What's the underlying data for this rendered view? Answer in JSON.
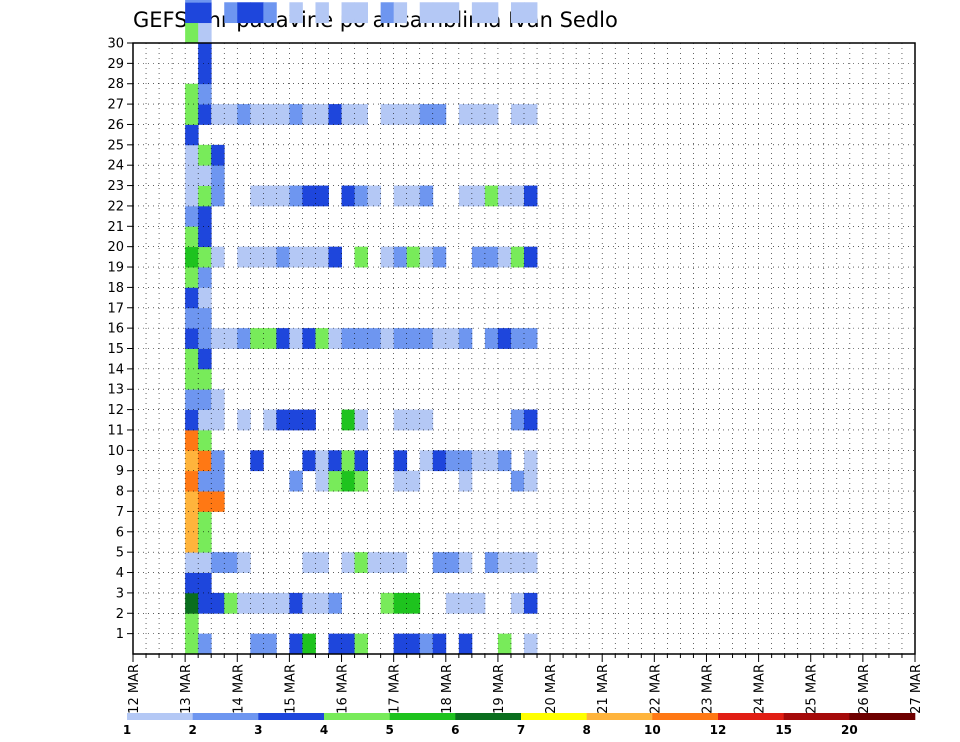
{
  "chart_data": {
    "type": "heatmap",
    "title": "GEFS 6hr padavine po ansamblima Ivan Sedlo",
    "xlabel": "",
    "ylabel": "",
    "x_ticks": [
      "12 MAR",
      "13 MAR",
      "14 MAR",
      "15 MAR",
      "16 MAR",
      "17 MAR",
      "18 MAR",
      "19 MAR",
      "20 MAR",
      "21 MAR",
      "22 MAR",
      "23 MAR",
      "24 MAR",
      "25 MAR",
      "26 MAR",
      "27 MAR"
    ],
    "y_ticks": [
      "1",
      "2",
      "3",
      "4",
      "5",
      "6",
      "7",
      "8",
      "9",
      "10",
      "11",
      "12",
      "13",
      "14",
      "15",
      "16",
      "17",
      "18",
      "19",
      "20",
      "21",
      "22",
      "23",
      "24",
      "25",
      "26",
      "27",
      "28",
      "29",
      "30"
    ],
    "x_range_steps": [
      0,
      60
    ],
    "y_range": [
      0,
      30
    ],
    "grid": true,
    "levels": [
      1,
      2,
      3,
      4,
      5,
      6,
      7,
      8,
      10,
      12,
      15,
      20
    ],
    "legend_labels": [
      "1",
      "2",
      "3",
      "4",
      "5",
      "6",
      "7",
      "8",
      "10",
      "12",
      "15",
      "20"
    ],
    "colors": [
      "#b4c8f5",
      "#6e96f0",
      "#1e46dc",
      "#78eb5a",
      "#1ec31e",
      "#0a6e1e",
      "#ffff00",
      "#ffb43c",
      "#ff7814",
      "#e11e14",
      "#a50a0a",
      "#6e0000"
    ],
    "cells": [
      [
        4,
        1,
        4
      ],
      [
        4,
        2,
        4
      ],
      [
        5,
        1,
        2
      ],
      [
        9,
        1,
        2
      ],
      [
        10,
        1,
        2
      ],
      [
        12,
        1,
        3
      ],
      [
        13,
        1,
        5
      ],
      [
        15,
        1,
        3
      ],
      [
        16,
        1,
        3
      ],
      [
        17,
        1,
        4
      ],
      [
        20,
        1,
        3
      ],
      [
        21,
        1,
        3
      ],
      [
        22,
        1,
        2
      ],
      [
        23,
        1,
        3
      ],
      [
        25,
        1,
        3
      ],
      [
        28,
        1,
        4
      ],
      [
        30,
        1,
        1
      ],
      [
        4,
        3,
        6
      ],
      [
        4,
        4,
        3
      ],
      [
        4,
        5,
        1
      ],
      [
        5,
        3,
        3
      ],
      [
        5,
        4,
        3
      ],
      [
        6,
        3,
        3
      ],
      [
        7,
        3,
        4
      ],
      [
        8,
        3,
        1
      ],
      [
        9,
        3,
        1
      ],
      [
        10,
        3,
        1
      ],
      [
        11,
        3,
        1
      ],
      [
        12,
        3,
        3
      ],
      [
        13,
        3,
        1
      ],
      [
        14,
        3,
        1
      ],
      [
        15,
        3,
        2
      ],
      [
        19,
        3,
        4
      ],
      [
        20,
        3,
        5
      ],
      [
        21,
        3,
        5
      ],
      [
        24,
        3,
        1
      ],
      [
        25,
        3,
        1
      ],
      [
        26,
        3,
        1
      ],
      [
        29,
        3,
        1
      ],
      [
        30,
        3,
        3
      ],
      [
        4,
        6,
        8
      ],
      [
        4,
        7,
        8
      ],
      [
        5,
        5,
        1
      ],
      [
        5,
        6,
        4
      ],
      [
        5,
        7,
        4
      ],
      [
        6,
        5,
        2
      ],
      [
        7,
        5,
        2
      ],
      [
        8,
        5,
        1
      ],
      [
        13,
        5,
        1
      ],
      [
        14,
        5,
        1
      ],
      [
        16,
        5,
        1
      ],
      [
        17,
        5,
        4
      ],
      [
        18,
        5,
        1
      ],
      [
        19,
        5,
        1
      ],
      [
        20,
        5,
        1
      ],
      [
        23,
        5,
        2
      ],
      [
        24,
        5,
        2
      ],
      [
        25,
        5,
        1
      ],
      [
        27,
        5,
        2
      ],
      [
        28,
        5,
        1
      ],
      [
        29,
        5,
        1
      ],
      [
        30,
        5,
        1
      ],
      [
        4,
        8,
        8
      ],
      [
        4,
        9,
        9
      ],
      [
        5,
        8,
        9
      ],
      [
        5,
        9,
        2
      ],
      [
        6,
        8,
        9
      ],
      [
        6,
        9,
        2
      ],
      [
        12,
        9,
        2
      ],
      [
        14,
        9,
        1
      ],
      [
        15,
        9,
        4
      ],
      [
        16,
        9,
        5
      ],
      [
        17,
        9,
        4
      ],
      [
        20,
        9,
        1
      ],
      [
        21,
        9,
        1
      ],
      [
        25,
        9,
        1
      ],
      [
        29,
        9,
        2
      ],
      [
        30,
        9,
        1
      ],
      [
        4,
        10,
        8
      ],
      [
        4,
        11,
        9
      ],
      [
        5,
        10,
        9
      ],
      [
        5,
        11,
        4
      ],
      [
        6,
        10,
        2
      ],
      [
        9,
        10,
        3
      ],
      [
        13,
        10,
        3
      ],
      [
        14,
        10,
        1
      ],
      [
        15,
        10,
        3
      ],
      [
        16,
        10,
        4
      ],
      [
        17,
        10,
        3
      ],
      [
        20,
        10,
        3
      ],
      [
        22,
        10,
        1
      ],
      [
        23,
        10,
        3
      ],
      [
        24,
        10,
        2
      ],
      [
        25,
        10,
        2
      ],
      [
        26,
        10,
        1
      ],
      [
        27,
        10,
        1
      ],
      [
        28,
        10,
        2
      ],
      [
        30,
        10,
        1
      ],
      [
        4,
        12,
        3
      ],
      [
        4,
        13,
        2
      ],
      [
        4,
        14,
        4
      ],
      [
        4,
        15,
        4
      ],
      [
        5,
        12,
        1
      ],
      [
        5,
        13,
        2
      ],
      [
        5,
        14,
        4
      ],
      [
        5,
        15,
        3
      ],
      [
        6,
        12,
        1
      ],
      [
        6,
        13,
        1
      ],
      [
        8,
        12,
        1
      ],
      [
        10,
        12,
        1
      ],
      [
        11,
        12,
        3
      ],
      [
        12,
        12,
        3
      ],
      [
        13,
        12,
        3
      ],
      [
        16,
        12,
        5
      ],
      [
        17,
        12,
        1
      ],
      [
        20,
        12,
        1
      ],
      [
        21,
        12,
        1
      ],
      [
        22,
        12,
        1
      ],
      [
        29,
        12,
        2
      ],
      [
        30,
        12,
        3
      ],
      [
        4,
        16,
        3
      ],
      [
        4,
        17,
        2
      ],
      [
        4,
        18,
        3
      ],
      [
        4,
        19,
        4
      ],
      [
        5,
        16,
        2
      ],
      [
        5,
        17,
        2
      ],
      [
        5,
        18,
        1
      ],
      [
        5,
        19,
        2
      ],
      [
        6,
        16,
        1
      ],
      [
        7,
        16,
        1
      ],
      [
        8,
        16,
        2
      ],
      [
        9,
        16,
        4
      ],
      [
        10,
        16,
        4
      ],
      [
        11,
        16,
        3
      ],
      [
        12,
        16,
        1
      ],
      [
        13,
        16,
        3
      ],
      [
        14,
        16,
        4
      ],
      [
        15,
        16,
        1
      ],
      [
        16,
        16,
        2
      ],
      [
        17,
        16,
        2
      ],
      [
        18,
        16,
        2
      ],
      [
        19,
        16,
        1
      ],
      [
        20,
        16,
        2
      ],
      [
        21,
        16,
        2
      ],
      [
        22,
        16,
        2
      ],
      [
        23,
        16,
        1
      ],
      [
        24,
        16,
        1
      ],
      [
        25,
        16,
        2
      ],
      [
        27,
        16,
        2
      ],
      [
        28,
        16,
        3
      ],
      [
        29,
        16,
        2
      ],
      [
        30,
        16,
        2
      ],
      [
        4,
        20,
        5
      ],
      [
        4,
        21,
        4
      ],
      [
        4,
        22,
        2
      ],
      [
        5,
        20,
        4
      ],
      [
        5,
        21,
        3
      ],
      [
        5,
        22,
        3
      ],
      [
        6,
        20,
        1
      ],
      [
        8,
        20,
        1
      ],
      [
        9,
        20,
        1
      ],
      [
        10,
        20,
        1
      ],
      [
        11,
        20,
        2
      ],
      [
        12,
        20,
        1
      ],
      [
        13,
        20,
        1
      ],
      [
        14,
        20,
        1
      ],
      [
        15,
        20,
        3
      ],
      [
        17,
        20,
        4
      ],
      [
        19,
        20,
        1
      ],
      [
        20,
        20,
        2
      ],
      [
        21,
        20,
        4
      ],
      [
        22,
        20,
        1
      ],
      [
        23,
        20,
        2
      ],
      [
        26,
        20,
        2
      ],
      [
        27,
        20,
        2
      ],
      [
        28,
        20,
        1
      ],
      [
        29,
        20,
        4
      ],
      [
        30,
        20,
        3
      ],
      [
        4,
        23,
        1
      ],
      [
        4,
        24,
        1
      ],
      [
        4,
        25,
        1
      ],
      [
        4,
        26,
        3
      ],
      [
        5,
        23,
        4
      ],
      [
        5,
        24,
        1
      ],
      [
        5,
        25,
        4
      ],
      [
        6,
        23,
        2
      ],
      [
        6,
        24,
        2
      ],
      [
        6,
        25,
        3
      ],
      [
        9,
        23,
        1
      ],
      [
        10,
        23,
        1
      ],
      [
        11,
        23,
        1
      ],
      [
        12,
        23,
        2
      ],
      [
        13,
        23,
        3
      ],
      [
        14,
        23,
        3
      ],
      [
        16,
        23,
        3
      ],
      [
        17,
        23,
        2
      ],
      [
        18,
        23,
        1
      ],
      [
        20,
        23,
        1
      ],
      [
        21,
        23,
        1
      ],
      [
        22,
        23,
        2
      ],
      [
        25,
        23,
        1
      ],
      [
        26,
        23,
        1
      ],
      [
        27,
        23,
        4
      ],
      [
        28,
        23,
        1
      ],
      [
        29,
        23,
        1
      ],
      [
        30,
        23,
        3
      ],
      [
        4,
        27,
        4
      ],
      [
        4,
        28,
        4
      ],
      [
        5,
        27,
        3
      ],
      [
        5,
        28,
        2
      ],
      [
        5,
        29,
        3
      ],
      [
        5,
        30,
        3
      ],
      [
        6,
        27,
        1
      ],
      [
        7,
        27,
        1
      ],
      [
        8,
        27,
        2
      ],
      [
        9,
        27,
        1
      ],
      [
        10,
        27,
        1
      ],
      [
        11,
        27,
        1
      ],
      [
        12,
        27,
        2
      ],
      [
        13,
        27,
        1
      ],
      [
        14,
        27,
        1
      ],
      [
        15,
        27,
        3
      ],
      [
        16,
        27,
        1
      ],
      [
        17,
        27,
        1
      ],
      [
        19,
        27,
        1
      ],
      [
        20,
        27,
        1
      ],
      [
        21,
        27,
        1
      ],
      [
        22,
        27,
        2
      ],
      [
        23,
        27,
        2
      ],
      [
        25,
        27,
        1
      ],
      [
        26,
        27,
        1
      ],
      [
        27,
        27,
        1
      ],
      [
        29,
        27,
        1
      ],
      [
        30,
        27,
        1
      ],
      [
        4,
        31,
        4
      ],
      [
        4,
        32,
        3
      ],
      [
        5,
        31,
        1
      ],
      [
        5,
        32,
        3
      ],
      [
        7,
        32,
        2
      ],
      [
        8,
        32,
        3
      ],
      [
        9,
        32,
        3
      ],
      [
        10,
        32,
        2
      ],
      [
        12,
        32,
        1
      ],
      [
        14,
        32,
        1
      ],
      [
        16,
        32,
        1
      ],
      [
        17,
        32,
        1
      ],
      [
        19,
        32,
        2
      ],
      [
        20,
        32,
        1
      ],
      [
        22,
        32,
        1
      ],
      [
        23,
        32,
        1
      ],
      [
        24,
        32,
        1
      ],
      [
        26,
        32,
        1
      ],
      [
        27,
        32,
        1
      ],
      [
        29,
        32,
        1
      ],
      [
        30,
        32,
        1
      ],
      [
        4,
        33,
        2
      ],
      [
        4,
        34,
        3
      ],
      [
        4,
        35,
        1
      ],
      [
        5,
        33,
        2
      ],
      [
        5,
        34,
        3
      ],
      [
        6,
        34,
        1
      ],
      [
        7,
        34,
        2
      ],
      [
        7,
        35,
        4
      ],
      [
        8,
        35,
        1
      ],
      [
        9,
        34,
        1
      ],
      [
        10,
        34,
        1
      ],
      [
        11,
        34,
        2
      ],
      [
        12,
        34,
        1
      ],
      [
        14,
        34,
        1
      ],
      [
        15,
        34,
        3
      ],
      [
        16,
        34,
        2
      ],
      [
        17,
        34,
        1
      ],
      [
        18,
        34,
        2
      ],
      [
        19,
        34,
        1
      ],
      [
        20,
        34,
        2
      ],
      [
        21,
        34,
        1
      ],
      [
        22,
        34,
        1
      ],
      [
        23,
        34,
        2
      ],
      [
        25,
        34,
        1
      ],
      [
        26,
        34,
        1
      ],
      [
        27,
        34,
        2
      ],
      [
        28,
        34,
        2
      ],
      [
        29,
        34,
        1
      ],
      [
        30,
        34,
        1
      ]
    ]
  }
}
